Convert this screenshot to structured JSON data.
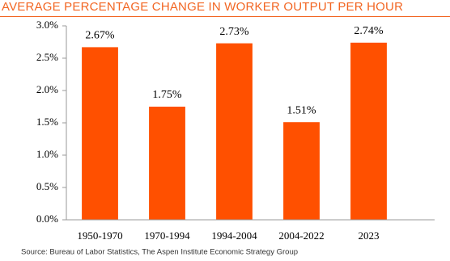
{
  "chart_data": {
    "type": "bar",
    "title": "AVERAGE PERCENTAGE CHANGE IN WORKER OUTPUT PER HOUR",
    "categories": [
      "1950-1970",
      "1970-1994",
      "1994-2004",
      "2004-2022",
      "2023"
    ],
    "values": [
      2.67,
      1.75,
      2.73,
      1.51,
      2.74
    ],
    "value_labels": [
      "2.67%",
      "1.75%",
      "2.73%",
      "1.51%",
      "2.74%"
    ],
    "color": "#ff5000",
    "ylim": [
      0,
      3
    ],
    "yticks": [
      {
        "value": 0,
        "label": "0.0%"
      },
      {
        "value": 0.5,
        "label": "0.5%"
      },
      {
        "value": 1,
        "label": "1.0%"
      },
      {
        "value": 1.5,
        "label": "1.5%"
      },
      {
        "value": 2,
        "label": "2.0%"
      },
      {
        "value": 2.5,
        "label": "2.5%"
      },
      {
        "value": 3,
        "label": "3.0%"
      }
    ],
    "grid": false,
    "source": "Source: Bureau of Labor Statistics, The Aspen Institute Economic Strategy Group"
  }
}
